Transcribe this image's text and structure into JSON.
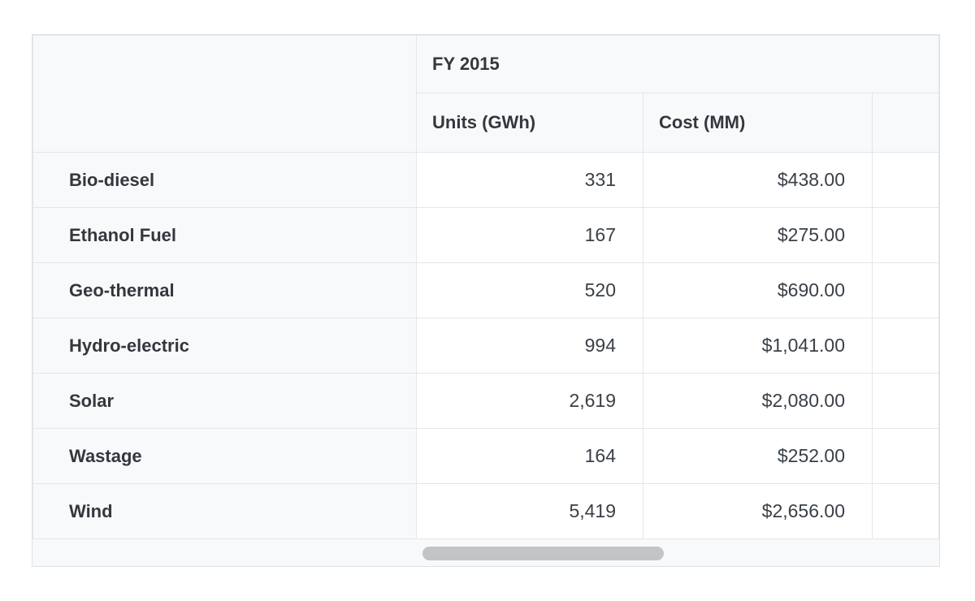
{
  "table": {
    "group_header": "FY 2015",
    "columns": [
      {
        "label": "Units (GWh)"
      },
      {
        "label": "Cost (MM)"
      }
    ],
    "rows": [
      {
        "label": "Bio-diesel",
        "units": "331",
        "cost": "$438.00"
      },
      {
        "label": "Ethanol Fuel",
        "units": "167",
        "cost": "$275.00"
      },
      {
        "label": "Geo-thermal",
        "units": "520",
        "cost": "$690.00"
      },
      {
        "label": "Hydro-electric",
        "units": "994",
        "cost": "$1,041.00"
      },
      {
        "label": "Solar",
        "units": "2,619",
        "cost": "$2,080.00"
      },
      {
        "label": "Wastage",
        "units": "164",
        "cost": "$252.00"
      },
      {
        "label": "Wind",
        "units": "5,419",
        "cost": "$2,656.00"
      }
    ],
    "colors": {
      "header_bg": "#f8f9fa",
      "cell_bg": "#ffffff",
      "border": "#e3e7ea",
      "text": "#343a40",
      "scrollbar_thumb": "#c2c4c7"
    }
  }
}
